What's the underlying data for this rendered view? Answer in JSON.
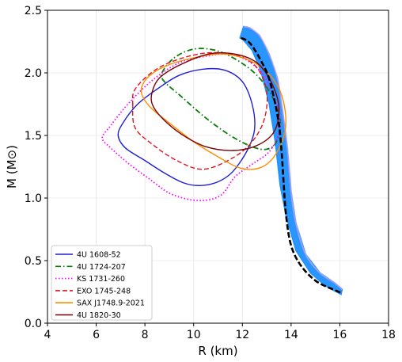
{
  "chart_data": {
    "type": "line",
    "xlabel": "R (km)",
    "ylabel": "M (M⊙)",
    "xlim": [
      4,
      18
    ],
    "ylim": [
      0,
      2.5
    ],
    "xticks": [
      "4",
      "6",
      "8",
      "10",
      "12",
      "14",
      "16",
      "18"
    ],
    "yticks": [
      "0.0",
      "0.5",
      "1.0",
      "1.5",
      "2.0",
      "2.5"
    ],
    "grid": true,
    "legend_position": "lower-left",
    "band": {
      "color": "#1e90ff",
      "upper": [
        [
          12.05,
          2.37
        ],
        [
          12.3,
          2.36
        ],
        [
          12.7,
          2.3
        ],
        [
          13.1,
          2.15
        ],
        [
          13.45,
          1.95
        ],
        [
          13.65,
          1.7
        ],
        [
          13.85,
          1.4
        ],
        [
          14.0,
          1.05
        ],
        [
          14.2,
          0.8
        ],
        [
          14.6,
          0.55
        ],
        [
          15.2,
          0.4
        ],
        [
          15.8,
          0.32
        ],
        [
          16.1,
          0.27
        ]
      ],
      "lower": [
        [
          16.05,
          0.23
        ],
        [
          15.4,
          0.3
        ],
        [
          14.8,
          0.4
        ],
        [
          14.2,
          0.58
        ],
        [
          13.8,
          0.85
        ],
        [
          13.55,
          1.1
        ],
        [
          13.35,
          1.45
        ],
        [
          13.1,
          1.75
        ],
        [
          12.75,
          2.02
        ],
        [
          12.4,
          2.18
        ],
        [
          12.05,
          2.26
        ],
        [
          11.9,
          2.28
        ]
      ]
    },
    "dashed_curve": {
      "color": "#000000",
      "points": [
        [
          11.95,
          2.28
        ],
        [
          12.3,
          2.24
        ],
        [
          12.7,
          2.12
        ],
        [
          13.1,
          1.95
        ],
        [
          13.45,
          1.65
        ],
        [
          13.6,
          1.4
        ],
        [
          13.7,
          1.1
        ],
        [
          13.8,
          0.85
        ],
        [
          14.0,
          0.62
        ],
        [
          14.4,
          0.46
        ],
        [
          15.0,
          0.34
        ],
        [
          15.6,
          0.28
        ],
        [
          16.1,
          0.24
        ]
      ]
    },
    "series": [
      {
        "name": "4U 1608-52",
        "color": "#1f1fd6",
        "dash": "solid",
        "points": [
          [
            6.9,
            1.5
          ],
          [
            7.1,
            1.6
          ],
          [
            7.7,
            1.75
          ],
          [
            8.5,
            1.87
          ],
          [
            9.4,
            1.98
          ],
          [
            10.4,
            2.03
          ],
          [
            11.3,
            2.02
          ],
          [
            12.0,
            1.93
          ],
          [
            12.4,
            1.75
          ],
          [
            12.5,
            1.55
          ],
          [
            12.2,
            1.38
          ],
          [
            11.6,
            1.21
          ],
          [
            11.0,
            1.13
          ],
          [
            10.3,
            1.1
          ],
          [
            9.6,
            1.12
          ],
          [
            8.8,
            1.2
          ],
          [
            8.0,
            1.3
          ],
          [
            7.2,
            1.4
          ],
          [
            6.9,
            1.5
          ]
        ]
      },
      {
        "name": "4U 1724-207",
        "color": "#0a7d0a",
        "dash": "dashdot",
        "points": [
          [
            8.7,
            2.0
          ],
          [
            9.2,
            2.12
          ],
          [
            10.0,
            2.19
          ],
          [
            10.9,
            2.18
          ],
          [
            11.8,
            2.1
          ],
          [
            12.6,
            1.98
          ],
          [
            13.2,
            1.82
          ],
          [
            13.55,
            1.62
          ],
          [
            13.4,
            1.45
          ],
          [
            13.0,
            1.39
          ],
          [
            12.4,
            1.41
          ],
          [
            11.5,
            1.5
          ],
          [
            10.5,
            1.64
          ],
          [
            9.5,
            1.81
          ],
          [
            8.8,
            1.93
          ],
          [
            8.7,
            2.0
          ]
        ]
      },
      {
        "name": "KS 1731-260",
        "color": "#ff00ff",
        "dash": "dotted",
        "points": [
          [
            6.25,
            1.48
          ],
          [
            6.6,
            1.58
          ],
          [
            7.3,
            1.75
          ],
          [
            8.3,
            1.94
          ],
          [
            9.4,
            2.08
          ],
          [
            10.4,
            2.13
          ],
          [
            11.3,
            2.15
          ],
          [
            12.1,
            2.11
          ],
          [
            12.8,
            2.0
          ],
          [
            13.2,
            1.85
          ],
          [
            13.5,
            1.68
          ],
          [
            13.5,
            1.52
          ],
          [
            13.1,
            1.37
          ],
          [
            12.4,
            1.27
          ],
          [
            11.7,
            1.17
          ],
          [
            11.1,
            1.02
          ],
          [
            10.2,
            0.98
          ],
          [
            9.1,
            1.03
          ],
          [
            8.2,
            1.15
          ],
          [
            7.3,
            1.28
          ],
          [
            6.6,
            1.4
          ],
          [
            6.25,
            1.48
          ]
        ]
      },
      {
        "name": "EXO 1745-248",
        "color": "#e0141e",
        "dash": "dashed",
        "points": [
          [
            7.5,
            1.74
          ],
          [
            7.6,
            1.87
          ],
          [
            8.4,
            2.02
          ],
          [
            9.4,
            2.11
          ],
          [
            10.6,
            2.16
          ],
          [
            11.8,
            2.14
          ],
          [
            12.6,
            2.04
          ],
          [
            13.0,
            1.85
          ],
          [
            12.9,
            1.63
          ],
          [
            12.4,
            1.45
          ],
          [
            11.6,
            1.32
          ],
          [
            10.4,
            1.23
          ],
          [
            9.3,
            1.3
          ],
          [
            8.3,
            1.43
          ],
          [
            7.6,
            1.56
          ],
          [
            7.5,
            1.74
          ]
        ]
      },
      {
        "name": "SAX J1748.9-2021",
        "color": "#ff8c00",
        "dash": "solid",
        "points": [
          [
            7.85,
            1.85
          ],
          [
            8.1,
            1.96
          ],
          [
            8.8,
            2.05
          ],
          [
            10.0,
            2.12
          ],
          [
            11.3,
            2.15
          ],
          [
            12.5,
            2.08
          ],
          [
            13.3,
            1.94
          ],
          [
            13.7,
            1.76
          ],
          [
            13.75,
            1.53
          ],
          [
            13.3,
            1.33
          ],
          [
            12.7,
            1.24
          ],
          [
            11.9,
            1.24
          ],
          [
            11.0,
            1.33
          ],
          [
            10.0,
            1.45
          ],
          [
            9.0,
            1.6
          ],
          [
            8.2,
            1.73
          ],
          [
            7.85,
            1.85
          ]
        ]
      },
      {
        "name": "4U 1820-30",
        "color": "#7a0000",
        "dash": "solid",
        "points": [
          [
            8.3,
            1.85
          ],
          [
            8.6,
            1.96
          ],
          [
            9.4,
            2.06
          ],
          [
            10.6,
            2.15
          ],
          [
            11.7,
            2.15
          ],
          [
            12.6,
            2.08
          ],
          [
            13.2,
            1.92
          ],
          [
            13.5,
            1.72
          ],
          [
            13.3,
            1.53
          ],
          [
            12.6,
            1.42
          ],
          [
            11.6,
            1.38
          ],
          [
            10.5,
            1.41
          ],
          [
            9.5,
            1.51
          ],
          [
            8.7,
            1.64
          ],
          [
            8.3,
            1.75
          ],
          [
            8.3,
            1.85
          ]
        ]
      }
    ]
  }
}
